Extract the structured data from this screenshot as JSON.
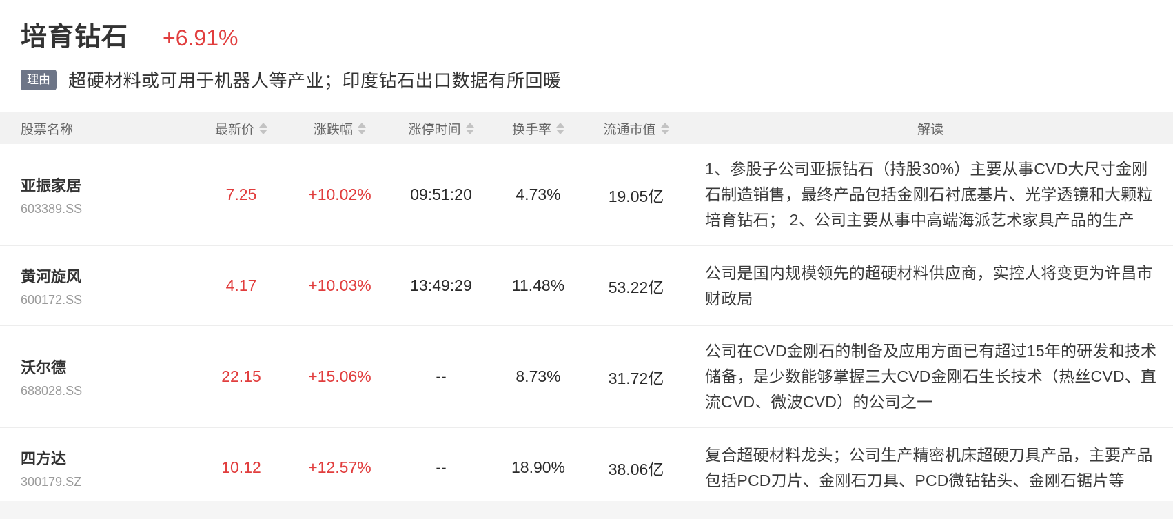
{
  "header": {
    "title": "培育钻石",
    "change": "+6.91%",
    "reason_badge": "理由",
    "reason": "超硬材料或可用于机器人等产业；印度钻石出口数据有所回暖"
  },
  "table": {
    "columns": [
      {
        "label": "股票名称",
        "sortable": false
      },
      {
        "label": "最新价",
        "sortable": true
      },
      {
        "label": "涨跌幅",
        "sortable": true
      },
      {
        "label": "涨停时间",
        "sortable": true
      },
      {
        "label": "换手率",
        "sortable": true
      },
      {
        "label": "流通市值",
        "sortable": true
      },
      {
        "label": "解读",
        "sortable": false
      }
    ],
    "rows": [
      {
        "name": "亚振家居",
        "code": "603389.SS",
        "price": "7.25",
        "change": "+10.02%",
        "limit_up_time": "09:51:20",
        "turnover": "4.73%",
        "market_cap": "19.05亿",
        "interpretation": "1、参股子公司亚振钻石（持股30%）主要从事CVD大尺寸金刚石制造销售，最终产品包括金刚石衬底基片、光学透镜和大颗粒培育钻石； 2、公司主要从事中高端海派艺术家具产品的生产"
      },
      {
        "name": "黄河旋风",
        "code": "600172.SS",
        "price": "4.17",
        "change": "+10.03%",
        "limit_up_time": "13:49:29",
        "turnover": "11.48%",
        "market_cap": "53.22亿",
        "interpretation": "公司是国内规模领先的超硬材料供应商，实控人将变更为许昌市财政局"
      },
      {
        "name": "沃尔德",
        "code": "688028.SS",
        "price": "22.15",
        "change": "+15.06%",
        "limit_up_time": "--",
        "turnover": "8.73%",
        "market_cap": "31.72亿",
        "interpretation": "公司在CVD金刚石的制备及应用方面已有超过15年的研发和技术储备，是少数能够掌握三大CVD金刚石生长技术（热丝CVD、直流CVD、微波CVD）的公司之一"
      },
      {
        "name": "四方达",
        "code": "300179.SZ",
        "price": "10.12",
        "change": "+12.57%",
        "limit_up_time": "--",
        "turnover": "18.90%",
        "market_cap": "38.06亿",
        "interpretation": "复合超硬材料龙头；公司生产精密机床超硬刀具产品，主要产品包括PCD刀片、金刚石刀具、PCD微钻钻头、金刚石锯片等"
      }
    ]
  },
  "colors": {
    "up_red": "#e13d3d",
    "badge_bg": "#6d7587",
    "header_bg": "#f2f2f2",
    "band_bg": "#f5f5f5"
  }
}
